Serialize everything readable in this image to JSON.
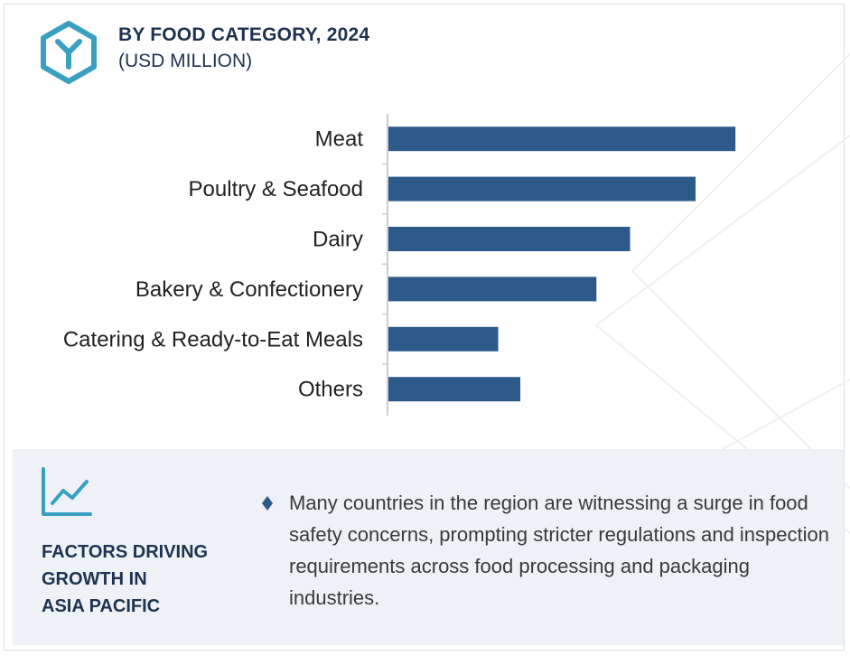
{
  "header": {
    "title": "BY FOOD CATEGORY, 2024",
    "subtitle": "(USD MILLION)"
  },
  "colors": {
    "bar": "#2e5a8a",
    "accent": "#3aa0c0",
    "title": "#1e3350",
    "panel_bg": "#eef1f5"
  },
  "chart_data": {
    "type": "bar",
    "orientation": "horizontal",
    "title": "BY FOOD CATEGORY, 2024",
    "subtitle": "(USD MILLION)",
    "categories": [
      "Meat",
      "Poultry & Seafood",
      "Dairy",
      "Bakery & Confectionery",
      "Catering & Ready-to-Eat Meals",
      "Others"
    ],
    "values": [
      392,
      347,
      273,
      235,
      124,
      149
    ],
    "xlim": [
      0,
      400
    ],
    "grid": false,
    "legend": "none"
  },
  "factors": {
    "title": "FACTORS DRIVING\nGROWTH IN\nASIA PACIFIC",
    "icon": "trend-line-icon",
    "bullet_icon": "diamond-bullet-icon",
    "bullets": [
      "Many countries in the region are witnessing a surge in food safety concerns, prompting stricter regulations and inspection requirements across food processing and packaging industries."
    ]
  }
}
